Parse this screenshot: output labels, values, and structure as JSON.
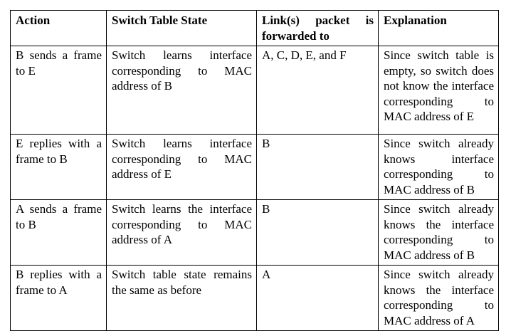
{
  "table": {
    "headers": [
      "Action",
      "Switch Table State",
      "Link(s) packet is forwarded to",
      "Explanation"
    ],
    "rows": [
      {
        "action": "B sends a frame to E",
        "state": "Switch learns interface corresponding to MAC address of B",
        "forwarded": "A, C, D, E, and F",
        "explanation": "Since switch table is empty, so switch does not know the interface corresponding to MAC address of E"
      },
      {
        "action": "E replies with a frame to B",
        "state": "Switch learns interface corresponding to MAC address of E",
        "forwarded": "B",
        "explanation": "Since switch already knows interface corresponding to MAC address of B"
      },
      {
        "action": "A sends a frame to B",
        "state": "Switch learns the interface corresponding to MAC address of A",
        "forwarded": "B",
        "explanation": "Since switch already knows the interface corresponding to MAC address of B"
      },
      {
        "action": "B replies with a frame to A",
        "state": "Switch table state remains the same as before",
        "forwarded": "A",
        "explanation": "Since switch already knows the interface corresponding to MAC address of A"
      }
    ]
  }
}
